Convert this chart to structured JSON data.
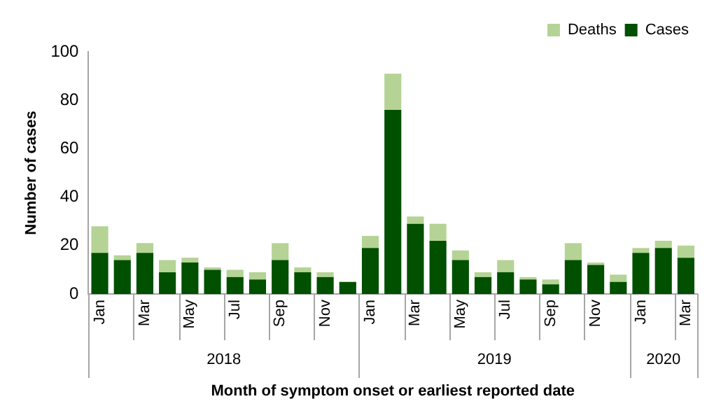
{
  "chart_data": {
    "type": "bar",
    "stacked": true,
    "xlabel": "Month of symptom onset or earliest reported date",
    "ylabel": "Number of cases",
    "categories": [
      "Jan",
      null,
      "Mar",
      null,
      "May",
      null,
      "Jul",
      null,
      "Sep",
      null,
      "Nov",
      null,
      "Jan",
      null,
      "Mar",
      null,
      "May",
      null,
      "Jul",
      null,
      "Sep",
      null,
      "Nov",
      null,
      "Jan",
      null,
      "Mar"
    ],
    "series": [
      {
        "name": "Cases",
        "color": "#005000",
        "values": [
          17,
          14,
          17,
          9,
          13,
          10,
          7,
          6,
          14,
          9,
          7,
          5,
          19,
          76,
          29,
          22,
          14,
          7,
          9,
          6,
          4,
          14,
          12,
          5,
          17,
          19,
          15
        ]
      },
      {
        "name": "Deaths",
        "color": "#b5d395",
        "values": [
          11,
          2,
          4,
          5,
          2,
          1,
          3,
          3,
          7,
          2,
          2,
          0,
          5,
          15,
          3,
          7,
          4,
          2,
          5,
          1,
          2,
          7,
          1,
          3,
          2,
          3,
          5
        ]
      }
    ],
    "ylim": [
      0,
      100
    ],
    "yticks": [
      0,
      20,
      40,
      60,
      80,
      100
    ],
    "grid": false,
    "legend": "top right",
    "annotations": [
      "2018",
      "2019",
      "2020"
    ]
  }
}
